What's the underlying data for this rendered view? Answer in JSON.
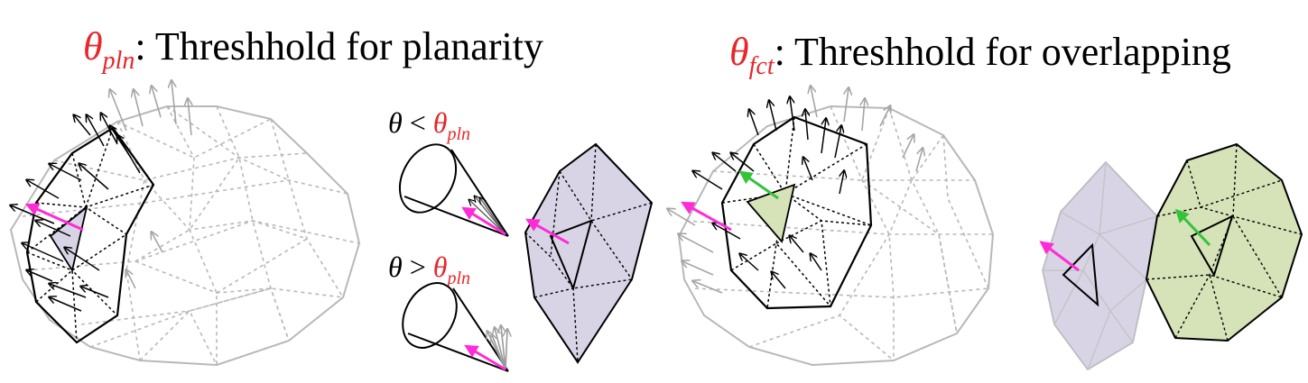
{
  "colors": {
    "red": "#e8262b",
    "magenta": "#ff2bd6",
    "green": "#33c43a",
    "lavender": "#d8d4e6",
    "lightgreen": "#d6e2b8",
    "mesh_gray": "#b8b8b8",
    "arrow_gray": "#9a9a9a",
    "ink": "#000000"
  },
  "titles": {
    "left": {
      "symbol": "θ",
      "subscript": "pln",
      "text": ": Threshhold for planarity"
    },
    "right": {
      "symbol": "θ",
      "subscript": "fct",
      "text": ": Threshhold for overlapping"
    }
  },
  "conditions": {
    "lt": {
      "lhs": "θ",
      "op": "<",
      "rhs_symbol": "θ",
      "rhs_sub": "pln"
    },
    "gt": {
      "lhs": "θ",
      "op": ">",
      "rhs_symbol": "θ",
      "rhs_sub": "pln"
    }
  },
  "icons": {
    "normal_arrow": "normal-vector-arrow",
    "cone": "normal-cone-icon"
  }
}
